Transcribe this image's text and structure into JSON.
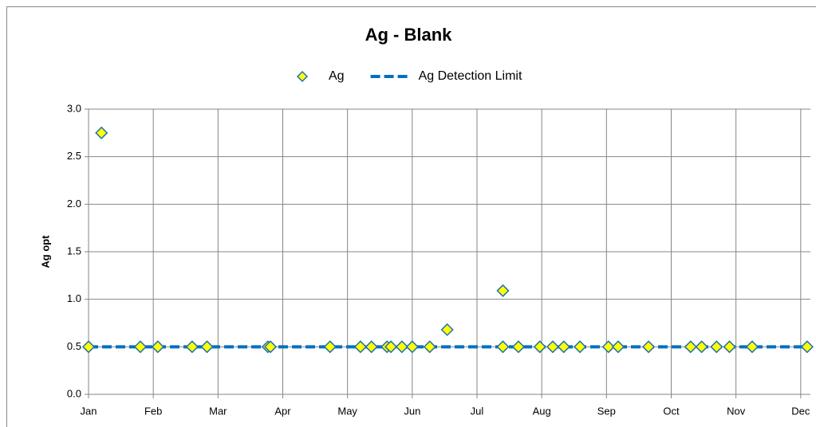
{
  "chart_data": {
    "type": "scatter",
    "title": "Ag - Blank",
    "y_label": "Ag opt",
    "xlim": [
      0,
      11.15
    ],
    "xticks": [
      {
        "value": 0,
        "label": "Jan"
      },
      {
        "value": 1,
        "label": "Feb"
      },
      {
        "value": 2,
        "label": "Mar"
      },
      {
        "value": 3,
        "label": "Apr"
      },
      {
        "value": 4,
        "label": "May"
      },
      {
        "value": 5,
        "label": "Jun"
      },
      {
        "value": 6,
        "label": "Jul"
      },
      {
        "value": 7,
        "label": "Aug"
      },
      {
        "value": 8,
        "label": "Sep"
      },
      {
        "value": 9,
        "label": "Oct"
      },
      {
        "value": 10,
        "label": "Nov"
      },
      {
        "value": 11,
        "label": "Dec"
      }
    ],
    "ylim": [
      0,
      3
    ],
    "yticks": [
      {
        "value": 0,
        "label": "0.0"
      },
      0.5,
      {
        "value": 1,
        "label": "1.0"
      },
      1.5,
      {
        "value": 2,
        "label": "2.0"
      },
      2.5,
      {
        "value": 3,
        "label": "3.0"
      }
    ],
    "grid": true,
    "legend": "top",
    "series": [
      {
        "name": "Ag",
        "style": "diamond-markers",
        "color": "#ffff00",
        "edge_color": "#1f6fb5",
        "x": [
          0,
          0.2,
          0.8,
          1.07,
          1.6,
          1.83,
          2.77,
          2.81,
          3.73,
          4.2,
          4.37,
          4.61,
          4.67,
          4.84,
          5.0,
          5.27,
          5.54,
          6.4,
          6.4,
          6.64,
          6.97,
          7.17,
          7.34,
          7.59,
          8.03,
          8.18,
          8.65,
          9.3,
          9.47,
          9.7,
          9.9,
          10.25,
          11.1
        ],
        "values": [
          0.5,
          2.75,
          0.5,
          0.5,
          0.5,
          0.5,
          0.5,
          0.5,
          0.5,
          0.5,
          0.5,
          0.5,
          0.5,
          0.5,
          0.5,
          0.5,
          0.68,
          1.09,
          0.5,
          0.5,
          0.5,
          0.5,
          0.5,
          0.5,
          0.5,
          0.5,
          0.5,
          0.5,
          0.5,
          0.5,
          0.5,
          0.5,
          0.5
        ]
      },
      {
        "name": "Ag Detection Limit",
        "style": "dashed-line",
        "color": "#0070c0",
        "x": [
          0,
          11.15
        ],
        "values": [
          0.5,
          0.5
        ]
      }
    ]
  }
}
